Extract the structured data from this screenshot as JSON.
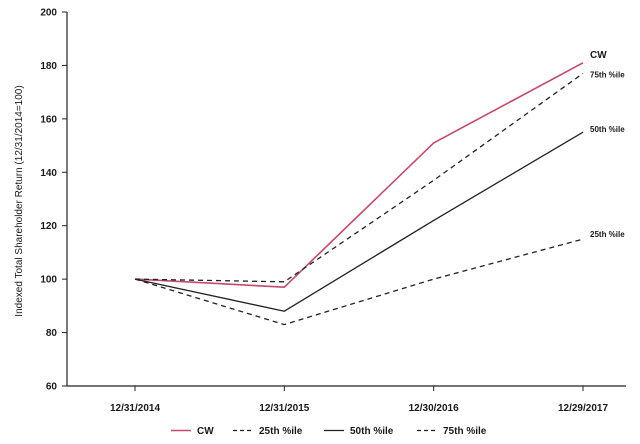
{
  "chart_data": {
    "type": "line",
    "ylabel": "Indexed Total Shareholder Return (12/31/2014=100)",
    "xlabel": "",
    "categories": [
      "12/31/2014",
      "12/31/2015",
      "12/30/2016",
      "12/29/2017"
    ],
    "ylim": [
      60,
      200
    ],
    "yticks": [
      60,
      80,
      100,
      120,
      140,
      160,
      180,
      200
    ],
    "grid": false,
    "legend_position": "bottom",
    "series": [
      {
        "name": "CW",
        "values": [
          100,
          97,
          151,
          181
        ],
        "color": "#c8486a",
        "style": "solid",
        "end_label": "CW"
      },
      {
        "name": "25th %ile",
        "values": [
          100,
          83,
          100,
          115
        ],
        "color": "#222222",
        "style": "dashed",
        "end_label": "25th %ile"
      },
      {
        "name": "50th %ile",
        "values": [
          100,
          88,
          122,
          155
        ],
        "color": "#222222",
        "style": "solid",
        "end_label": "50th %ile"
      },
      {
        "name": "75th %ile",
        "values": [
          100,
          99,
          137,
          177
        ],
        "color": "#222222",
        "style": "dashed",
        "end_label": "75th %ile"
      }
    ]
  }
}
